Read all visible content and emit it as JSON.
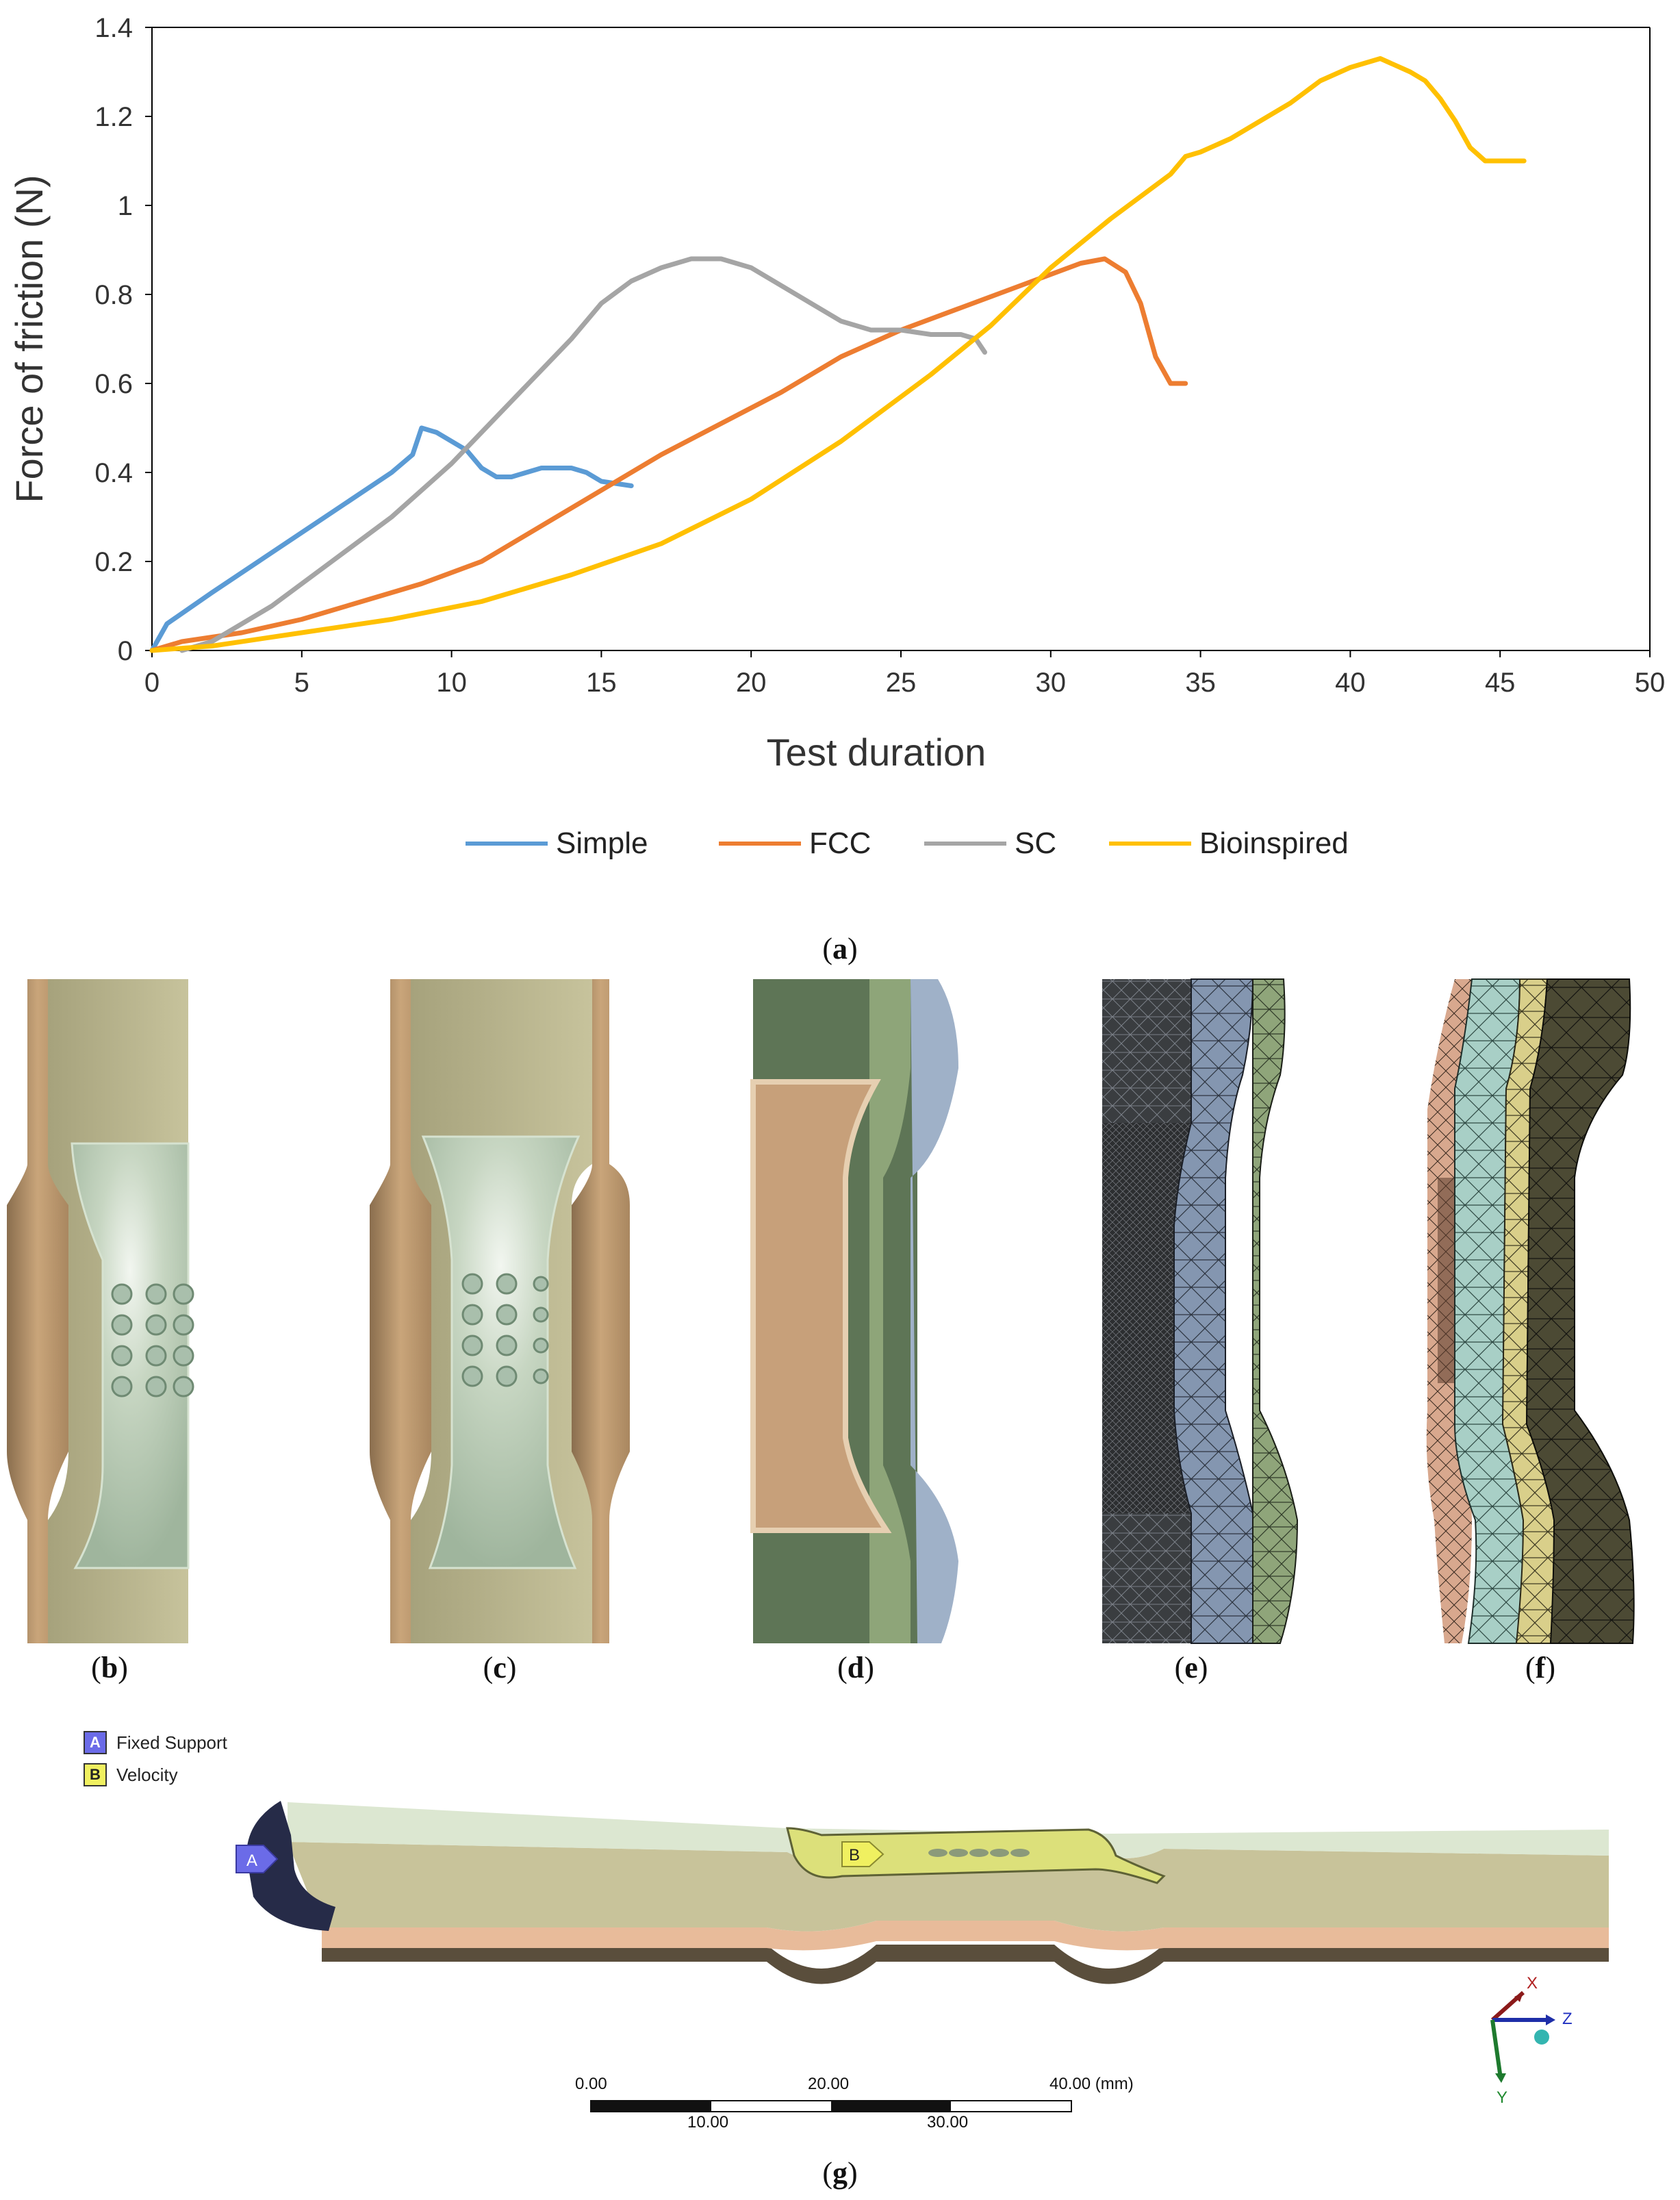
{
  "captions": {
    "a": "a",
    "b": "b",
    "c": "c",
    "d": "d",
    "e": "e",
    "f": "f",
    "g": "g"
  },
  "colors": {
    "simple": "#5b9bd5",
    "fcc": "#ed7d31",
    "sc": "#a5a5a5",
    "bioinspired": "#ffc000",
    "fixed_support": "#6b6be8",
    "velocity": "#f0f060"
  },
  "chart_data": {
    "type": "line",
    "xlabel": "Test duration",
    "ylabel": "Force of friction (N)",
    "xlim": [
      0,
      50
    ],
    "ylim": [
      0,
      1.4
    ],
    "xticks": [
      0,
      5,
      10,
      15,
      20,
      25,
      30,
      35,
      40,
      45,
      50
    ],
    "yticks": [
      0,
      0.2,
      0.4,
      0.6,
      0.8,
      1,
      1.2,
      1.4
    ],
    "ytick_labels": [
      "0",
      "0.2",
      "0.4",
      "0.6",
      "0.8",
      "1",
      "1.2",
      "1.4"
    ],
    "legend_position": "bottom",
    "grid": false,
    "series": [
      {
        "name": "Simple",
        "color": "#5b9bd5",
        "points": [
          [
            0,
            0
          ],
          [
            0.5,
            0.06
          ],
          [
            2,
            0.13
          ],
          [
            4,
            0.22
          ],
          [
            6,
            0.31
          ],
          [
            8,
            0.4
          ],
          [
            8.7,
            0.44
          ],
          [
            9,
            0.5
          ],
          [
            9.5,
            0.49
          ],
          [
            10.5,
            0.45
          ],
          [
            11,
            0.41
          ],
          [
            11.5,
            0.39
          ],
          [
            12,
            0.39
          ],
          [
            12.5,
            0.4
          ],
          [
            13,
            0.41
          ],
          [
            14,
            0.41
          ],
          [
            14.5,
            0.4
          ],
          [
            15,
            0.38
          ],
          [
            16,
            0.37
          ]
        ]
      },
      {
        "name": "FCC",
        "color": "#ed7d31",
        "points": [
          [
            0,
            0
          ],
          [
            1,
            0.02
          ],
          [
            3,
            0.04
          ],
          [
            5,
            0.07
          ],
          [
            7,
            0.11
          ],
          [
            9,
            0.15
          ],
          [
            11,
            0.2
          ],
          [
            13,
            0.28
          ],
          [
            15,
            0.36
          ],
          [
            17,
            0.44
          ],
          [
            19,
            0.51
          ],
          [
            21,
            0.58
          ],
          [
            23,
            0.66
          ],
          [
            25,
            0.72
          ],
          [
            27,
            0.77
          ],
          [
            29,
            0.82
          ],
          [
            31,
            0.87
          ],
          [
            31.8,
            0.88
          ],
          [
            32.5,
            0.85
          ],
          [
            33,
            0.78
          ],
          [
            33.5,
            0.66
          ],
          [
            34,
            0.6
          ],
          [
            34.5,
            0.6
          ]
        ]
      },
      {
        "name": "SC",
        "color": "#a5a5a5",
        "points": [
          [
            1,
            0
          ],
          [
            2,
            0.02
          ],
          [
            4,
            0.1
          ],
          [
            6,
            0.2
          ],
          [
            8,
            0.3
          ],
          [
            10,
            0.42
          ],
          [
            12,
            0.56
          ],
          [
            14,
            0.7
          ],
          [
            15,
            0.78
          ],
          [
            16,
            0.83
          ],
          [
            17,
            0.86
          ],
          [
            18,
            0.88
          ],
          [
            19,
            0.88
          ],
          [
            20,
            0.86
          ],
          [
            21,
            0.82
          ],
          [
            22,
            0.78
          ],
          [
            23,
            0.74
          ],
          [
            24,
            0.72
          ],
          [
            25,
            0.72
          ],
          [
            26,
            0.71
          ],
          [
            27,
            0.71
          ],
          [
            27.5,
            0.7
          ],
          [
            27.8,
            0.67
          ]
        ]
      },
      {
        "name": "Bioinspired",
        "color": "#ffc000",
        "points": [
          [
            0,
            0
          ],
          [
            2,
            0.01
          ],
          [
            5,
            0.04
          ],
          [
            8,
            0.07
          ],
          [
            11,
            0.11
          ],
          [
            14,
            0.17
          ],
          [
            17,
            0.24
          ],
          [
            20,
            0.34
          ],
          [
            23,
            0.47
          ],
          [
            26,
            0.62
          ],
          [
            28,
            0.73
          ],
          [
            30,
            0.86
          ],
          [
            32,
            0.97
          ],
          [
            34,
            1.07
          ],
          [
            34.5,
            1.11
          ],
          [
            35,
            1.12
          ],
          [
            36,
            1.15
          ],
          [
            38,
            1.23
          ],
          [
            39,
            1.28
          ],
          [
            40,
            1.31
          ],
          [
            41,
            1.33
          ],
          [
            42,
            1.3
          ],
          [
            42.5,
            1.28
          ],
          [
            43,
            1.24
          ],
          [
            43.5,
            1.19
          ],
          [
            44,
            1.13
          ],
          [
            44.5,
            1.1
          ],
          [
            45,
            1.1
          ],
          [
            45.8,
            1.1
          ]
        ]
      }
    ]
  },
  "annotations": {
    "a_label": "A",
    "a_text": "Fixed Support",
    "b_label": "B",
    "b_text": "Velocity"
  },
  "scale_bar": {
    "top_labels": [
      "0.00",
      "20.00",
      "40.00 (mm)"
    ],
    "bottom_labels": [
      "10.00",
      "30.00"
    ]
  },
  "triad": {
    "x": "X",
    "y": "Y",
    "z": "Z"
  }
}
